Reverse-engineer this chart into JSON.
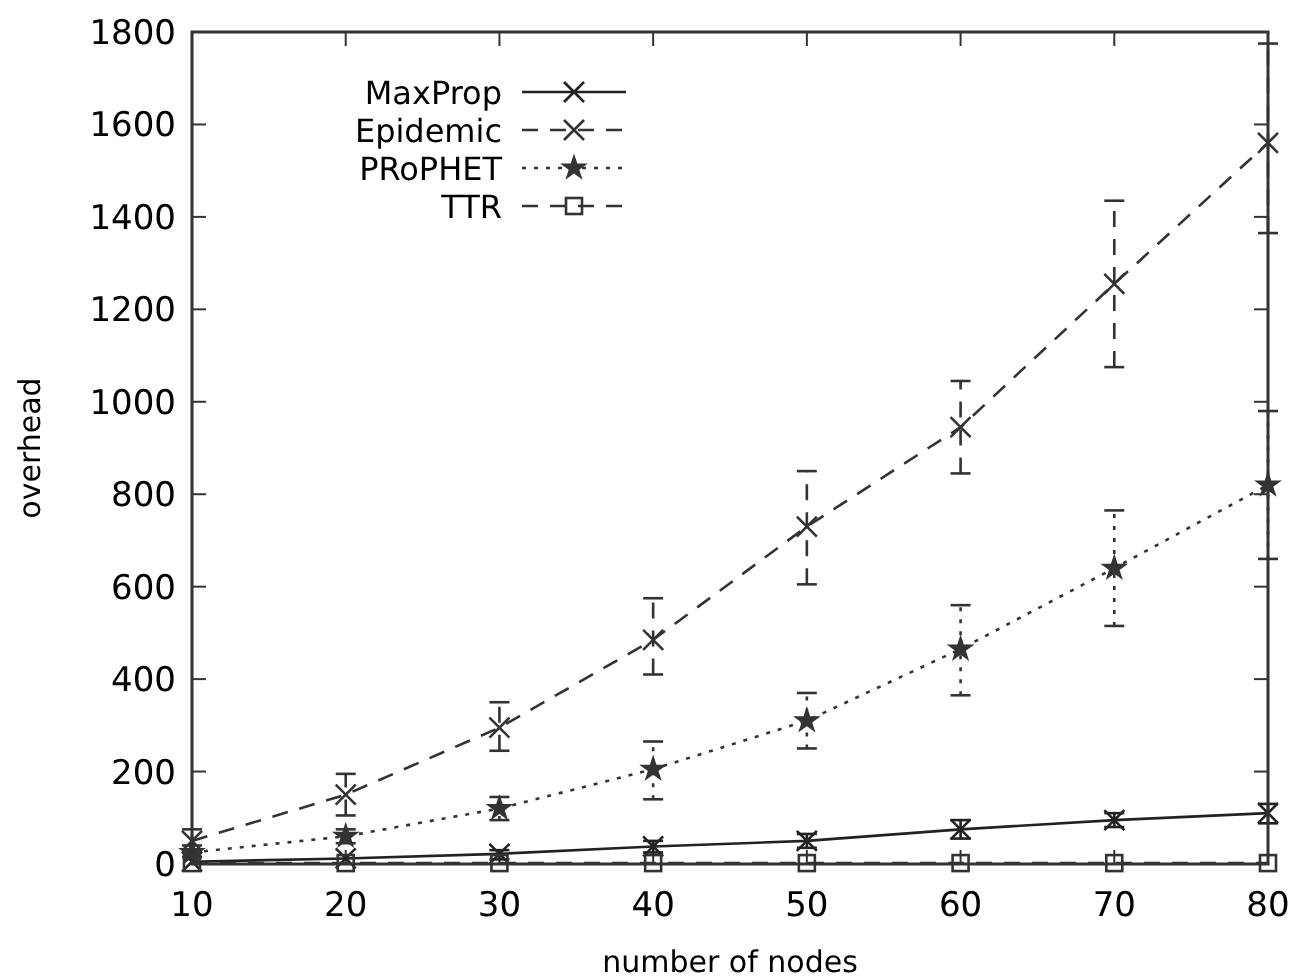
{
  "chart_data": {
    "type": "line",
    "xlabel": "number of nodes",
    "ylabel": "overhead",
    "x": [
      10,
      20,
      30,
      40,
      50,
      60,
      70,
      80
    ],
    "xlim": [
      10,
      80
    ],
    "xticks": [
      10,
      20,
      30,
      40,
      50,
      60,
      70,
      80
    ],
    "ylim": [
      0,
      1800
    ],
    "yticks": [
      0,
      200,
      400,
      600,
      800,
      1000,
      1200,
      1400,
      1600,
      1800
    ],
    "grid": false,
    "legend": "top left",
    "series": [
      {
        "name": "MaxProp",
        "color": "#222222",
        "marker": "cross",
        "line_style": "solid",
        "values": [
          5,
          12,
          22,
          38,
          50,
          75,
          95,
          110
        ],
        "errors": [
          null,
          null,
          [
            10,
            30
          ],
          [
            25,
            50
          ],
          [
            35,
            65
          ],
          [
            55,
            95
          ],
          [
            80,
            110
          ],
          [
            88,
            130
          ]
        ]
      },
      {
        "name": "Epidemic",
        "color": "#333333",
        "marker": "cross",
        "line_style": "dashed",
        "values": [
          50,
          150,
          295,
          485,
          730,
          945,
          1255,
          1560
        ],
        "errors": [
          [
            30,
            75
          ],
          [
            105,
            195
          ],
          [
            245,
            350
          ],
          [
            410,
            575
          ],
          [
            605,
            850
          ],
          [
            845,
            1045
          ],
          [
            1075,
            1435
          ],
          [
            1365,
            1775
          ]
        ]
      },
      {
        "name": "PRoPHET",
        "color": "#333333",
        "marker": "star",
        "line_style": "dotted",
        "values": [
          25,
          60,
          120,
          205,
          310,
          465,
          640,
          820
        ],
        "errors": [
          [
            15,
            40
          ],
          [
            45,
            75
          ],
          [
            95,
            145
          ],
          [
            140,
            265
          ],
          [
            250,
            370
          ],
          [
            365,
            560
          ],
          [
            515,
            765
          ],
          [
            660,
            980
          ]
        ]
      },
      {
        "name": "TTR",
        "color": "#333333",
        "marker": "square",
        "line_style": "dashed",
        "values": [
          2,
          2,
          2,
          2,
          2,
          2,
          2,
          2
        ]
      }
    ]
  }
}
